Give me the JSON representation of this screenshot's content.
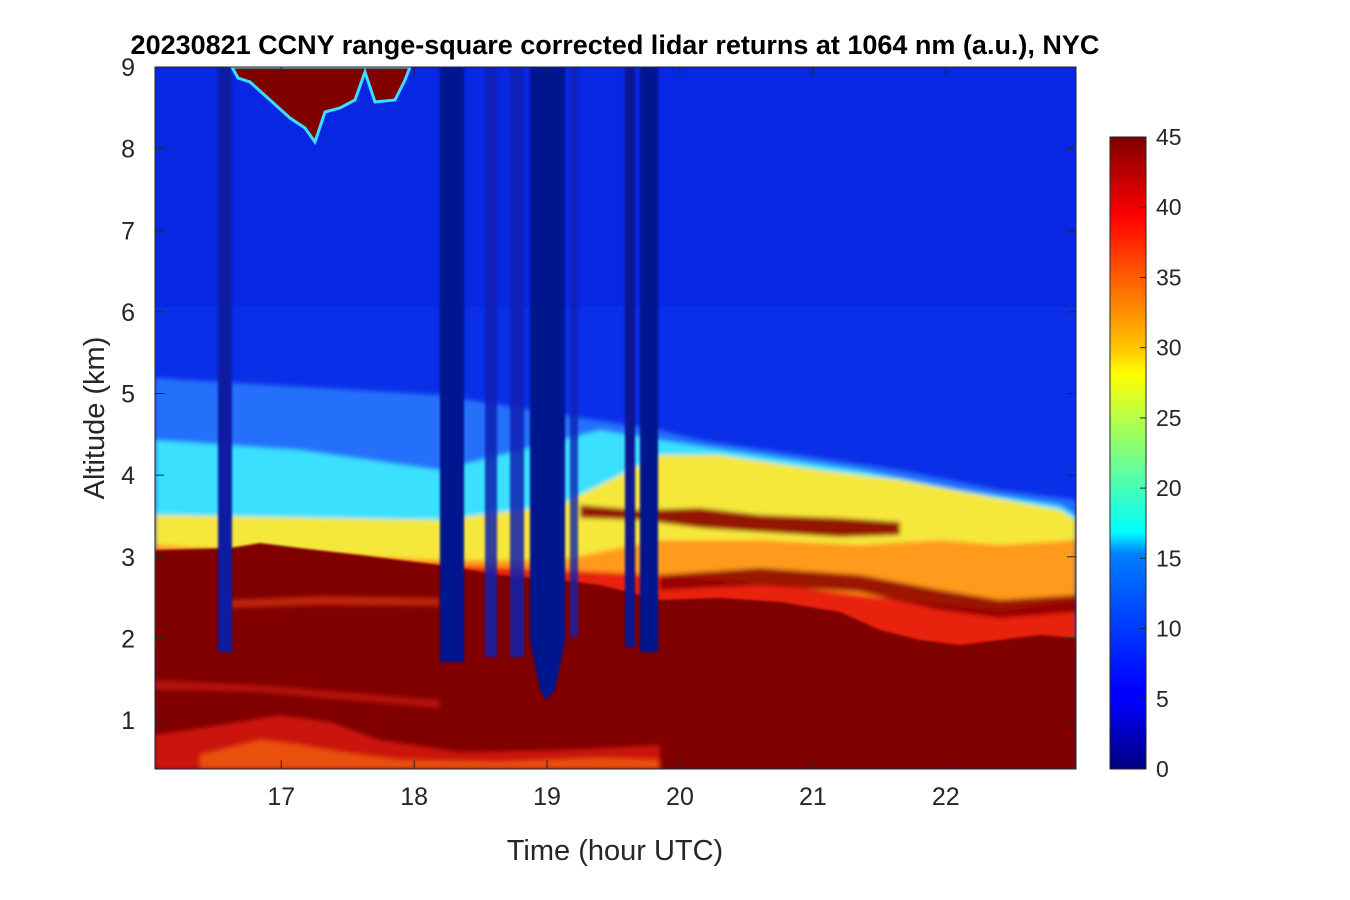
{
  "chart_data": {
    "type": "heatmap",
    "title": "20230821 CCNY range-square corrected lidar returns at 1064 nm (a.u.), NYC",
    "xlabel": "Time (hour UTC)",
    "ylabel": "Altitude (km)",
    "xlim": [
      16.05,
      22.98
    ],
    "ylim": [
      0.4,
      9.0
    ],
    "xticks": [
      "17",
      "18",
      "19",
      "20",
      "21",
      "22"
    ],
    "yticks": [
      "1",
      "2",
      "3",
      "4",
      "5",
      "6",
      "7",
      "8",
      "9"
    ],
    "colormap": "jet",
    "colorbar": {
      "min": 0,
      "max": 45,
      "ticks": [
        "0",
        "5",
        "10",
        "15",
        "20",
        "25",
        "30",
        "35",
        "40",
        "45"
      ]
    },
    "features": [
      {
        "kind": "boundary layer (saturated returns)",
        "time_range": [
          16.05,
          22.98
        ],
        "altitude_top_km": [
          3.0,
          2.0
        ]
      },
      {
        "kind": "aerosol / smoke layer",
        "time_range": [
          16.05,
          22.98
        ],
        "altitude_km": [
          2.5,
          4.4
        ]
      },
      {
        "kind": "cirrus cloud",
        "time_range": [
          16.6,
          17.95
        ],
        "altitude_km": [
          8.0,
          9.0
        ]
      },
      {
        "kind": "signal dropouts",
        "time_ranges": [
          [
            16.55,
            16.65
          ],
          [
            18.2,
            18.38
          ],
          [
            18.88,
            19.1
          ],
          [
            19.6,
            19.82
          ]
        ]
      }
    ]
  }
}
